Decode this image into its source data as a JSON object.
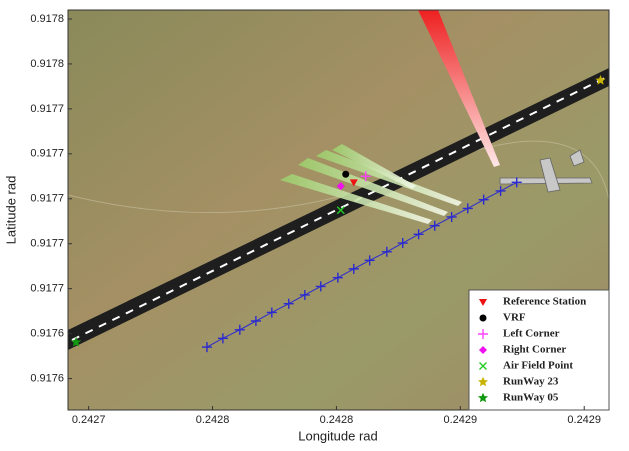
{
  "chart_data": {
    "type": "scatter",
    "xlabel": "Longitude  rad",
    "ylabel": "Latitude  rad",
    "xlim": [
      0.242695,
      0.242957
    ],
    "ylim": [
      0.917598,
      0.917776
    ],
    "xticks": [
      {
        "value": 0.242705,
        "label": "0.2427"
      },
      {
        "value": 0.242765,
        "label": "0.2428"
      },
      {
        "value": 0.242825,
        "label": "0.2428"
      },
      {
        "value": 0.242885,
        "label": "0.2429"
      },
      {
        "value": 0.242945,
        "label": "0.2429"
      }
    ],
    "yticks": [
      {
        "value": 0.917612,
        "label": "0.9176"
      },
      {
        "value": 0.917632,
        "label": "0.9176"
      },
      {
        "value": 0.917652,
        "label": "0.9177"
      },
      {
        "value": 0.917672,
        "label": "0.9177"
      },
      {
        "value": 0.917692,
        "label": "0.9177"
      },
      {
        "value": 0.917712,
        "label": "0.9177"
      },
      {
        "value": 0.917732,
        "label": "0.9177"
      },
      {
        "value": 0.917752,
        "label": "0.9178"
      },
      {
        "value": 0.917772,
        "label": "0.9178"
      }
    ],
    "legend": "lower right",
    "series": [
      {
        "color": "#2a2ad0",
        "marker": "plus",
        "line": true,
        "x": [
          0.2427623,
          0.24277,
          0.2427782,
          0.242786,
          0.2427937,
          0.2428019,
          0.2428097,
          0.2428174,
          0.2428257,
          0.2428334,
          0.2428411,
          0.2428494,
          0.2428571,
          0.2428648,
          0.2428726,
          0.2428808,
          0.2428886,
          0.2428963,
          0.2429045,
          0.2429123
        ],
        "values": [
          0.917626,
          0.9176299,
          0.9176337,
          0.9176376,
          0.9176414,
          0.9176453,
          0.9176492,
          0.917653,
          0.9176569,
          0.9176608,
          0.9176646,
          0.9176684,
          0.9176723,
          0.9176762,
          0.91768,
          0.9176839,
          0.9176877,
          0.9176916,
          0.9176955,
          0.9176993
        ]
      },
      {
        "name": "Reference Station",
        "color": "#ee1111",
        "marker": "triangle",
        "x": [
          0.2428334
        ],
        "values": [
          0.9176993
        ]
      },
      {
        "name": "VRF",
        "color": "#000000",
        "marker": "circle",
        "x": [
          0.2428295
        ],
        "values": [
          0.9177029
        ]
      },
      {
        "name": "Left Corner",
        "color": "#ff44ff",
        "marker": "plus",
        "x": [
          0.2428392
        ],
        "values": [
          0.917702
        ]
      },
      {
        "name": "Right Corner",
        "color": "#ee11ee",
        "marker": "diamond",
        "x": [
          0.2428271
        ],
        "values": [
          0.9176976
        ]
      },
      {
        "name": "Air Field Point",
        "color": "#22cc22",
        "marker": "x",
        "x": [
          0.2428271
        ],
        "values": [
          0.9176869
        ]
      },
      {
        "name": "RunWay 23",
        "color": "#c8b400",
        "marker": "star",
        "x": [
          0.2429529
        ],
        "values": [
          0.9177447
        ]
      },
      {
        "name": "RunWay 05",
        "color": "#119911",
        "marker": "star",
        "x": [
          0.2426989
        ],
        "values": [
          0.9176282
        ]
      }
    ]
  }
}
